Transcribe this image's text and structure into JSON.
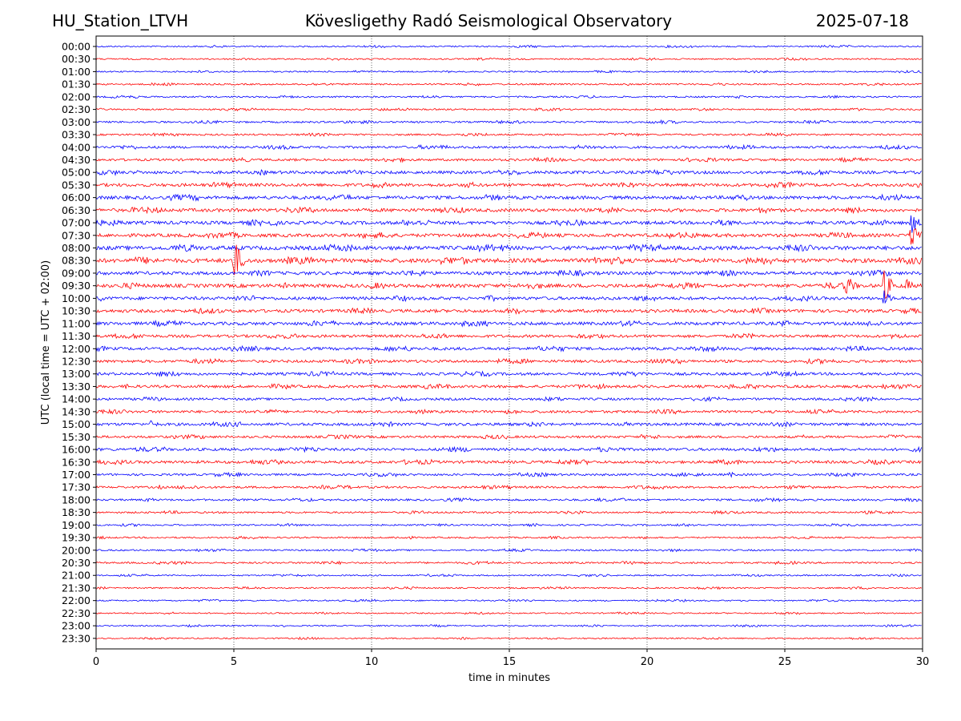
{
  "header": {
    "station": "HU_Station_LTVH",
    "observatory": "Kövesligethy Radó Seismological Observatory",
    "date": "2025-07-18"
  },
  "chart_data": {
    "type": "line",
    "title": "Kövesligethy Radó Seismological Observatory",
    "xlabel": "time in minutes",
    "ylabel": "UTC (local time = UTC + 02:00)",
    "xlim": [
      0,
      30
    ],
    "xticks": [
      0,
      5,
      10,
      15,
      20,
      25,
      30
    ],
    "xgrid": "dotted vertical lines at each 5 minute tick",
    "colors": [
      "#0000ff",
      "#ff0000"
    ],
    "traces": [
      {
        "label": "00:00",
        "color": "#0000ff",
        "activity": 0.1,
        "events": []
      },
      {
        "label": "00:30",
        "color": "#ff0000",
        "activity": 0.1,
        "events": []
      },
      {
        "label": "01:00",
        "color": "#0000ff",
        "activity": 0.1,
        "events": []
      },
      {
        "label": "01:30",
        "color": "#ff0000",
        "activity": 0.15,
        "events": []
      },
      {
        "label": "02:00",
        "color": "#0000ff",
        "activity": 0.15,
        "events": []
      },
      {
        "label": "02:30",
        "color": "#ff0000",
        "activity": 0.15,
        "events": []
      },
      {
        "label": "03:00",
        "color": "#0000ff",
        "activity": 0.2,
        "events": [
          {
            "minute": 20.5,
            "amplitude": 3
          }
        ]
      },
      {
        "label": "03:30",
        "color": "#ff0000",
        "activity": 0.2,
        "events": []
      },
      {
        "label": "04:00",
        "color": "#0000ff",
        "activity": 0.35,
        "events": []
      },
      {
        "label": "04:30",
        "color": "#ff0000",
        "activity": 0.35,
        "events": []
      },
      {
        "label": "05:00",
        "color": "#0000ff",
        "activity": 0.5,
        "events": [
          {
            "minute": 1.5,
            "amplitude": 3
          }
        ]
      },
      {
        "label": "05:30",
        "color": "#ff0000",
        "activity": 0.55,
        "events": []
      },
      {
        "label": "06:00",
        "color": "#0000ff",
        "activity": 0.6,
        "events": []
      },
      {
        "label": "06:30",
        "color": "#ff0000",
        "activity": 0.6,
        "events": []
      },
      {
        "label": "07:00",
        "color": "#0000ff",
        "activity": 0.6,
        "events": [
          {
            "minute": 29.6,
            "amplitude": 14
          }
        ]
      },
      {
        "label": "07:30",
        "color": "#ff0000",
        "activity": 0.6,
        "events": [
          {
            "minute": 29.6,
            "amplitude": 22
          }
        ]
      },
      {
        "label": "08:00",
        "color": "#0000ff",
        "activity": 0.75,
        "events": []
      },
      {
        "label": "08:30",
        "color": "#ff0000",
        "activity": 0.8,
        "events": [
          {
            "minute": 5.0,
            "amplitude": 30
          }
        ]
      },
      {
        "label": "09:00",
        "color": "#0000ff",
        "activity": 0.6,
        "events": []
      },
      {
        "label": "09:30",
        "color": "#ff0000",
        "activity": 0.65,
        "events": [
          {
            "minute": 27.2,
            "amplitude": 18
          },
          {
            "minute": 28.6,
            "amplitude": 22
          },
          {
            "minute": 29.4,
            "amplitude": 10
          }
        ]
      },
      {
        "label": "10:00",
        "color": "#0000ff",
        "activity": 0.55,
        "events": [
          {
            "minute": 28.6,
            "amplitude": 10
          }
        ]
      },
      {
        "label": "10:30",
        "color": "#ff0000",
        "activity": 0.55,
        "events": []
      },
      {
        "label": "11:00",
        "color": "#0000ff",
        "activity": 0.55,
        "events": []
      },
      {
        "label": "11:30",
        "color": "#ff0000",
        "activity": 0.45,
        "events": []
      },
      {
        "label": "12:00",
        "color": "#0000ff",
        "activity": 0.5,
        "events": []
      },
      {
        "label": "12:30",
        "color": "#ff0000",
        "activity": 0.45,
        "events": []
      },
      {
        "label": "13:00",
        "color": "#0000ff",
        "activity": 0.45,
        "events": []
      },
      {
        "label": "13:30",
        "color": "#ff0000",
        "activity": 0.45,
        "events": []
      },
      {
        "label": "14:00",
        "color": "#0000ff",
        "activity": 0.35,
        "events": []
      },
      {
        "label": "14:30",
        "color": "#ff0000",
        "activity": 0.4,
        "events": []
      },
      {
        "label": "15:00",
        "color": "#0000ff",
        "activity": 0.45,
        "events": [
          {
            "minute": 2.0,
            "amplitude": 6
          }
        ]
      },
      {
        "label": "15:30",
        "color": "#ff0000",
        "activity": 0.35,
        "events": []
      },
      {
        "label": "16:00",
        "color": "#0000ff",
        "activity": 0.45,
        "events": []
      },
      {
        "label": "16:30",
        "color": "#ff0000",
        "activity": 0.45,
        "events": []
      },
      {
        "label": "17:00",
        "color": "#0000ff",
        "activity": 0.3,
        "events": [
          {
            "minute": 23.0,
            "amplitude": 4
          }
        ]
      },
      {
        "label": "17:30",
        "color": "#ff0000",
        "activity": 0.3,
        "events": [
          {
            "minute": 2.3,
            "amplitude": 3
          },
          {
            "minute": 8.2,
            "amplitude": 3
          }
        ]
      },
      {
        "label": "18:00",
        "color": "#0000ff",
        "activity": 0.25,
        "events": []
      },
      {
        "label": "18:30",
        "color": "#ff0000",
        "activity": 0.2,
        "events": []
      },
      {
        "label": "19:00",
        "color": "#0000ff",
        "activity": 0.15,
        "events": []
      },
      {
        "label": "19:30",
        "color": "#ff0000",
        "activity": 0.15,
        "events": []
      },
      {
        "label": "20:00",
        "color": "#0000ff",
        "activity": 0.15,
        "events": []
      },
      {
        "label": "20:30",
        "color": "#ff0000",
        "activity": 0.2,
        "events": []
      },
      {
        "label": "21:00",
        "color": "#0000ff",
        "activity": 0.1,
        "events": []
      },
      {
        "label": "21:30",
        "color": "#ff0000",
        "activity": 0.1,
        "events": []
      },
      {
        "label": "22:00",
        "color": "#0000ff",
        "activity": 0.1,
        "events": []
      },
      {
        "label": "22:30",
        "color": "#ff0000",
        "activity": 0.08,
        "events": []
      },
      {
        "label": "23:00",
        "color": "#0000ff",
        "activity": 0.08,
        "events": []
      },
      {
        "label": "23:30",
        "color": "#ff0000",
        "activity": 0.08,
        "events": []
      }
    ]
  }
}
